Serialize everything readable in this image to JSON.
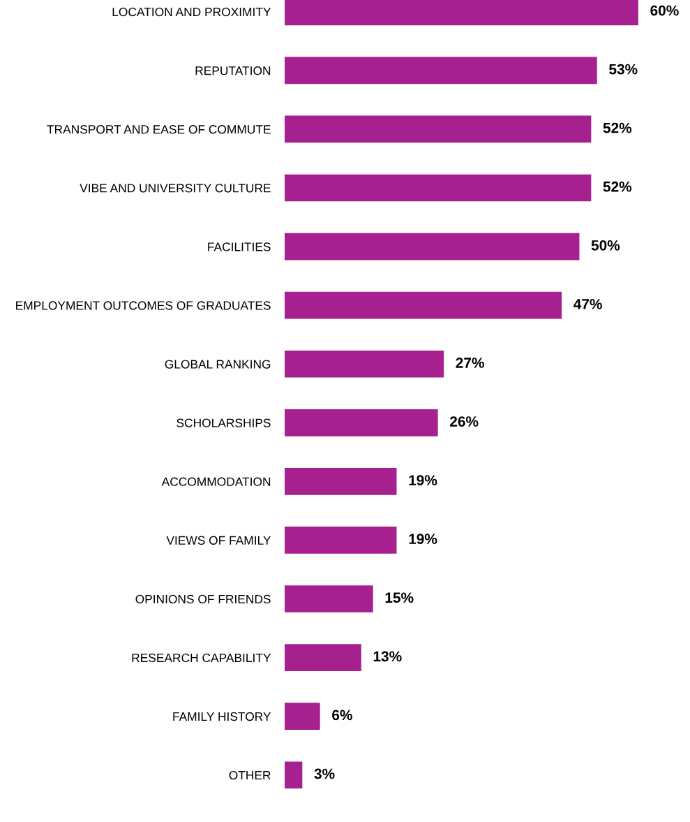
{
  "chart_data": {
    "type": "bar",
    "orientation": "horizontal",
    "categories": [
      "LOCATION AND PROXIMITY",
      "REPUTATION",
      "TRANSPORT AND EASE OF COMMUTE",
      "VIBE AND UNIVERSITY CULTURE",
      "FACILITIES",
      "EMPLOYMENT OUTCOMES OF GRADUATES",
      "GLOBAL RANKING",
      "SCHOLARSHIPS",
      "ACCOMMODATION",
      "VIEWS OF FAMILY",
      "OPINIONS OF FRIENDS",
      "RESEARCH CAPABILITY",
      "FAMILY HISTORY",
      "OTHER"
    ],
    "values": [
      60,
      53,
      52,
      52,
      50,
      47,
      27,
      26,
      19,
      19,
      15,
      13,
      6,
      3
    ],
    "value_labels": [
      "60%",
      "53%",
      "52%",
      "52%",
      "50%",
      "47%",
      "27%",
      "26%",
      "19%",
      "19%",
      "15%",
      "13%",
      "6%",
      "3%"
    ],
    "color": "#a6208f",
    "tick_labels": "y",
    "grid": false,
    "legend": false
  }
}
